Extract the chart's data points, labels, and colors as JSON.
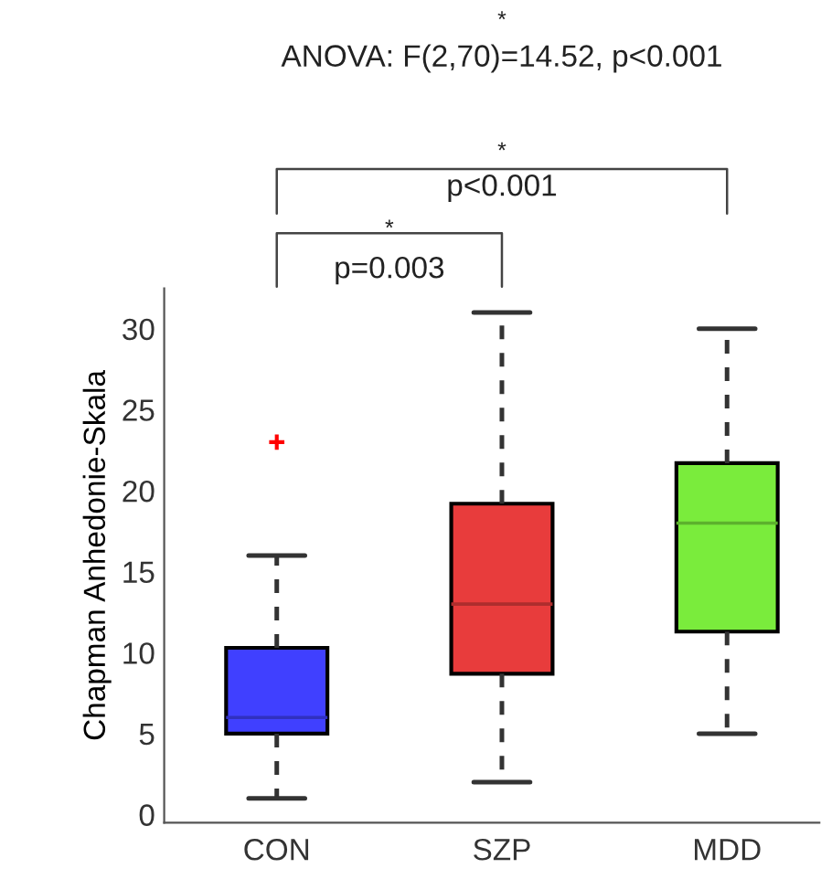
{
  "chart_data": {
    "type": "box",
    "ylabel": "Chapman Anhedonie-Skala",
    "categories": [
      "CON",
      "SZP",
      "MDD"
    ],
    "colors": [
      "#4040ff",
      "#e83c3c",
      "#7aec3c"
    ],
    "boxes": [
      {
        "low": 1,
        "q1": 5,
        "median": 6,
        "q3": 10.3,
        "high": 16,
        "outliers": [
          23
        ]
      },
      {
        "low": 2,
        "q1": 8.7,
        "median": 13,
        "q3": 19.2,
        "high": 31
      },
      {
        "low": 5,
        "q1": 11.3,
        "median": 18,
        "q3": 21.7,
        "high": 30
      }
    ],
    "ylim": [
      -0.5,
      32.5
    ],
    "yticks": [
      0,
      5,
      10,
      15,
      20,
      25,
      30
    ],
    "grid": false,
    "annotations": [
      "*",
      "ANOVA: F(2,70)=14.52, p<0.001",
      "*",
      "p<0.001",
      "*",
      "p=0.003"
    ]
  }
}
